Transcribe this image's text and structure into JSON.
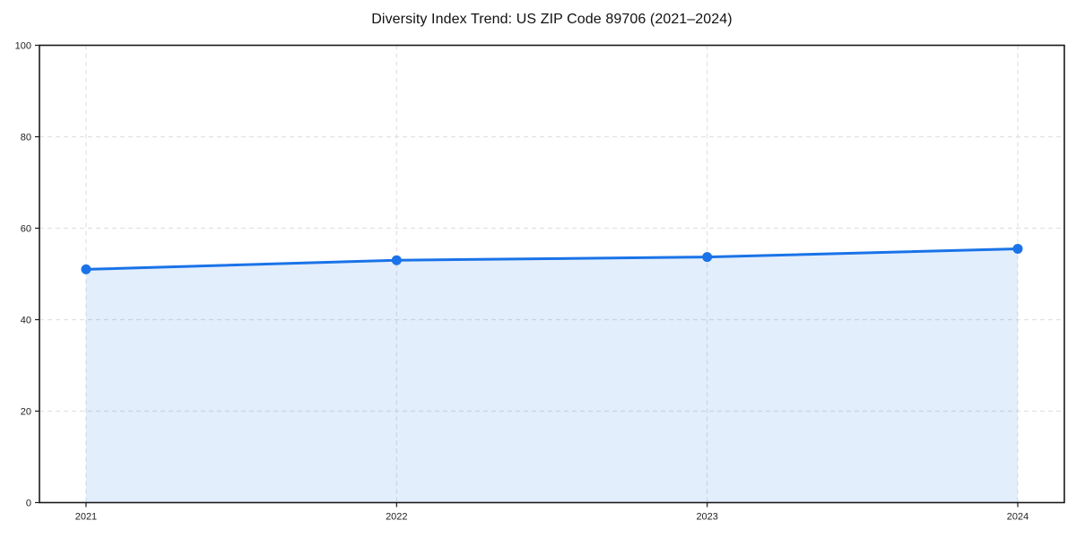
{
  "chart_data": {
    "type": "area",
    "title": "Diversity Index Trend: US ZIP Code 89706 (2021–2024)",
    "xlabel": "",
    "ylabel": "",
    "categories": [
      "2021",
      "2022",
      "2023",
      "2024"
    ],
    "series": [
      {
        "name": "Diversity Index",
        "values": [
          51.0,
          53.0,
          53.7,
          55.5
        ]
      }
    ],
    "ylim": [
      0,
      100
    ],
    "y_ticks": [
      0,
      20,
      40,
      60,
      80,
      100
    ],
    "grid": "dashed-both-axes",
    "legend_position": "none",
    "line_color": "#1a73e8",
    "marker_color": "#1a73e8",
    "fill_color": "#1a73e8",
    "fill_opacity": 0.12,
    "gridline_color": "#e2e2e2",
    "spine_color": "#1a1a1a",
    "tick_label_color": "#222222",
    "title_color": "#111111"
  }
}
